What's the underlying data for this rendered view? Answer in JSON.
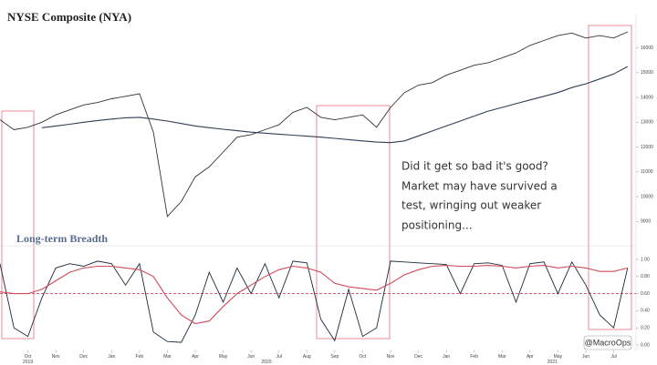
{
  "chart_data": [
    {
      "type": "line",
      "title": "NYSE Composite (NYA)",
      "annotation": [
        "Did it get so bad it's good?",
        "Market may have survived a",
        "test, wringing out weaker",
        "positioning..."
      ],
      "x": [
        0,
        0.5,
        1,
        1.5,
        2,
        2.5,
        3,
        3.5,
        4,
        4.5,
        5,
        5.5,
        6,
        6.5,
        7,
        7.5,
        8,
        8.5,
        9,
        9.5,
        10,
        10.5,
        11,
        11.5,
        12,
        12.5,
        13,
        13.5,
        14,
        14.5,
        15,
        15.5,
        16,
        16.5,
        17,
        17.5,
        18,
        18.5,
        19,
        19.5,
        20,
        20.5,
        21,
        21.5,
        22,
        22.5
      ],
      "xlim": [
        0,
        22.8
      ],
      "ylim": [
        8200,
        17200
      ],
      "yticks": [
        9000,
        10000,
        11000,
        12000,
        13000,
        14000,
        15000,
        16000
      ],
      "series": [
        {
          "color": "#333333",
          "values": [
            13100,
            12700,
            12800,
            13000,
            13300,
            13500,
            13700,
            13800,
            13950,
            14050,
            14150,
            12600,
            9200,
            9800,
            10800,
            11200,
            11800,
            12400,
            12500,
            12700,
            12900,
            13400,
            13600,
            13200,
            13100,
            13200,
            13300,
            12800,
            13600,
            14200,
            14500,
            14600,
            14900,
            15100,
            15300,
            15400,
            15600,
            15800,
            16100,
            16300,
            16500,
            16600,
            16400,
            16500,
            16400,
            16650
          ]
        },
        {
          "color": "#2f3e55",
          "values": [
            null,
            null,
            null,
            12780,
            12850,
            12920,
            13000,
            13070,
            13130,
            13180,
            13200,
            13130,
            13050,
            12950,
            12850,
            12780,
            12720,
            12660,
            12600,
            12560,
            12520,
            12480,
            12440,
            12400,
            12350,
            12300,
            12250,
            12200,
            12180,
            12250,
            12450,
            12650,
            12850,
            13050,
            13250,
            13450,
            13600,
            13750,
            13900,
            14050,
            14200,
            14400,
            14550,
            14750,
            14950,
            15250
          ]
        }
      ]
    },
    {
      "type": "line",
      "title": "Long-term Breadth",
      "x": [
        0,
        0.5,
        1,
        1.5,
        2,
        2.5,
        3,
        3.5,
        4,
        4.5,
        5,
        5.5,
        6,
        6.5,
        7,
        7.5,
        8,
        8.5,
        9,
        9.5,
        10,
        10.5,
        11,
        11.5,
        12,
        12.5,
        13,
        13.5,
        14,
        14.5,
        15,
        15.5,
        16,
        16.5,
        17,
        17.5,
        18,
        18.5,
        19,
        19.5,
        20,
        20.5,
        21,
        21.5,
        22,
        22.5
      ],
      "xlim": [
        0,
        22.8
      ],
      "xticks": [
        {
          "value": 1,
          "label": "Oct"
        },
        {
          "value": 2,
          "label": "Nov"
        },
        {
          "value": 3,
          "label": "Dec"
        },
        {
          "value": 4,
          "label": "Jan"
        },
        {
          "value": 5,
          "label": "Feb"
        },
        {
          "value": 6,
          "label": "Mar"
        },
        {
          "value": 7,
          "label": "Apr"
        },
        {
          "value": 8,
          "label": "May"
        },
        {
          "value": 9,
          "label": "Jun"
        },
        {
          "value": 10,
          "label": "Jul"
        },
        {
          "value": 11,
          "label": "Aug"
        },
        {
          "value": 12,
          "label": "Sep"
        },
        {
          "value": 13,
          "label": "Oct"
        },
        {
          "value": 14,
          "label": "Nov"
        },
        {
          "value": 15,
          "label": "Dec"
        },
        {
          "value": 16,
          "label": "Jan"
        },
        {
          "value": 17,
          "label": "Feb"
        },
        {
          "value": 18,
          "label": "Mar"
        },
        {
          "value": 19,
          "label": "Apr"
        },
        {
          "value": 20,
          "label": "May"
        },
        {
          "value": 21,
          "label": "Jun"
        },
        {
          "value": 22,
          "label": "Jul"
        }
      ],
      "year_ticks": [
        {
          "value": 1,
          "label": "2019"
        },
        {
          "value": 9.55,
          "label": "2020"
        },
        {
          "value": 19.8,
          "label": "2021"
        }
      ],
      "ylim": [
        -0.06,
        1.05
      ],
      "yticks": [
        {
          "value": 0,
          "label": "0.00"
        },
        {
          "value": 0.2,
          "label": "0.20"
        },
        {
          "value": 0.4,
          "label": "0.40"
        },
        {
          "value": 0.6,
          "label": "0.60"
        },
        {
          "value": 0.8,
          "label": "0.80"
        },
        {
          "value": 1,
          "label": "1.00"
        }
      ],
      "hline": {
        "value": 0.6,
        "color": "#d04a5a"
      },
      "series": [
        {
          "color": "#1b2a3a",
          "values": [
            0.95,
            0.2,
            0.1,
            0.55,
            0.9,
            0.95,
            0.92,
            0.98,
            0.95,
            0.7,
            0.95,
            0.15,
            0.04,
            0.03,
            0.35,
            0.85,
            0.5,
            0.9,
            0.6,
            0.95,
            0.55,
            0.98,
            0.96,
            0.3,
            0.05,
            0.65,
            0.1,
            0.2,
            0.98,
            0.97,
            0.96,
            0.95,
            0.94,
            0.6,
            0.95,
            0.96,
            0.93,
            0.5,
            0.95,
            0.97,
            0.6,
            0.97,
            0.7,
            0.35,
            0.2,
            0.9
          ]
        },
        {
          "color": "#d04a5a",
          "values": [
            0.62,
            0.6,
            0.6,
            0.65,
            0.75,
            0.85,
            0.9,
            0.92,
            0.92,
            0.9,
            0.88,
            0.8,
            0.55,
            0.35,
            0.25,
            0.28,
            0.45,
            0.6,
            0.7,
            0.8,
            0.88,
            0.92,
            0.9,
            0.85,
            0.72,
            0.68,
            0.66,
            0.64,
            0.72,
            0.82,
            0.88,
            0.92,
            0.93,
            0.92,
            0.92,
            0.93,
            0.92,
            0.9,
            0.92,
            0.93,
            0.9,
            0.92,
            0.9,
            0.86,
            0.86,
            0.9
          ]
        }
      ]
    }
  ],
  "watermark": "@MacroOps"
}
